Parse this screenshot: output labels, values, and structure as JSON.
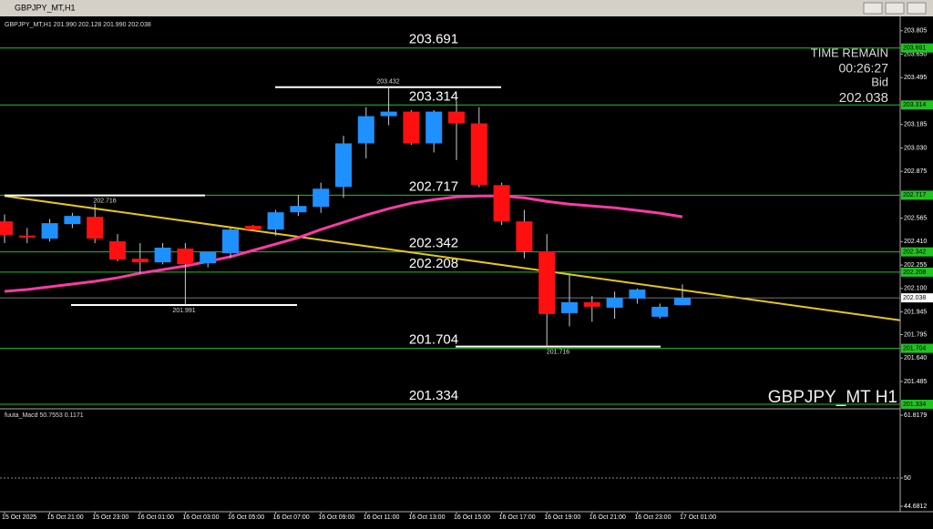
{
  "window_title": "GBPJPY_MT,H1",
  "chart_data": {
    "type": "candlestick",
    "info": "GBPJPY_MT,H1  201.990 202.128 201.990 202.038",
    "categories": [
      "15 Oct 2025",
      null,
      "15 Oct 21:00",
      null,
      "15 Oct 23:00",
      null,
      "16 Oct 01:00",
      null,
      "16 Oct 03:00",
      null,
      "16 Oct 05:00",
      null,
      "16 Oct 07:00",
      null,
      "16 Oct 09:00",
      null,
      "16 Oct 11:00",
      null,
      "16 Oct 13:00",
      null,
      "16 Oct 15:00",
      null,
      "16 Oct 17:00",
      null,
      "16 Oct 19:00",
      null,
      "16 Oct 21:00",
      null,
      "16 Oct 23:00",
      null,
      "17 Oct 01:00"
    ],
    "open": [
      202.544,
      202.45,
      202.43,
      202.526,
      202.574,
      202.412,
      202.297,
      202.273,
      202.364,
      202.267,
      202.334,
      202.514,
      202.49,
      202.604,
      202.64,
      202.772,
      203.06,
      203.24,
      203.27,
      203.06,
      203.27,
      203.192,
      202.784,
      202.544,
      202.346,
      201.937,
      202.009,
      201.973,
      202.033,
      201.913,
      201.99
    ],
    "high": [
      202.59,
      202.5,
      202.56,
      202.6,
      202.66,
      202.46,
      202.4,
      202.4,
      202.4,
      202.34,
      202.5,
      202.52,
      202.62,
      202.72,
      202.8,
      203.11,
      203.3,
      203.432,
      203.28,
      203.28,
      203.34,
      203.3,
      202.8,
      202.62,
      202.46,
      202.2,
      202.05,
      202.08,
      202.1,
      202.0,
      202.128
    ],
    "low": [
      202.4,
      202.4,
      202.41,
      202.5,
      202.4,
      202.28,
      202.2,
      202.26,
      201.991,
      202.24,
      202.3,
      202.48,
      202.45,
      202.58,
      202.6,
      202.7,
      202.96,
      203.18,
      203.05,
      203.0,
      202.95,
      202.77,
      202.52,
      202.3,
      201.716,
      201.85,
      201.88,
      201.9,
      202.0,
      201.9,
      201.99
    ],
    "close": [
      202.454,
      202.442,
      202.532,
      202.58,
      202.43,
      202.291,
      202.273,
      202.37,
      202.261,
      202.34,
      202.49,
      202.49,
      202.604,
      202.646,
      202.76,
      203.06,
      203.24,
      203.27,
      203.06,
      203.27,
      203.192,
      202.784,
      202.544,
      202.346,
      201.931,
      202.009,
      201.979,
      202.039,
      202.093,
      201.979,
      202.038
    ],
    "up_color": "#1e90ff",
    "down_color": "#ff1010",
    "ylim": [
      201.31,
      203.9
    ],
    "yticks": [
      203.805,
      {
        "value": 203.65,
        "label": "203.650"
      },
      203.495,
      203.185,
      {
        "value": 203.03,
        "label": "203.030"
      },
      202.875,
      202.565,
      {
        "value": 202.41,
        "label": "202.410"
      },
      202.255,
      {
        "value": 202.1,
        "label": "202.100"
      },
      201.945,
      201.795,
      {
        "value": 201.64,
        "label": "201.640"
      },
      201.485
    ],
    "levels": [
      203.691,
      203.314,
      202.717,
      202.342,
      202.208,
      201.704,
      201.334
    ],
    "level_color": "#22c222",
    "bid": 202.038,
    "annotations": [
      203.432,
      202.716,
      201.991,
      201.716
    ],
    "overlays": [
      {
        "color": "#ff3aa8",
        "values": [
          202.081,
          202.093,
          202.111,
          202.129,
          202.147,
          202.171,
          202.201,
          202.225,
          202.249,
          202.279,
          202.31,
          202.352,
          202.394,
          202.436,
          202.49,
          202.538,
          202.586,
          202.628,
          202.664,
          202.688,
          202.706,
          202.712,
          202.712,
          202.7,
          202.676,
          202.658,
          202.646,
          202.634,
          202.616,
          202.598,
          202.574
        ]
      }
    ],
    "trendline": {
      "color": "#e6c619",
      "values": [
        202.712,
        201.89
      ]
    },
    "timer": {
      "label": "TIME REMAIN",
      "time": "00:26:27",
      "bid_label": "Bid"
    },
    "watermark": "GBPJPY_MT H1",
    "subwindow": {
      "title": "fuuta_Macd 50.7553  0.1171",
      "ylim": [
        44.6812,
        61.8179
      ],
      "yticks": [
        61.8179,
        50,
        44.6812
      ]
    }
  }
}
